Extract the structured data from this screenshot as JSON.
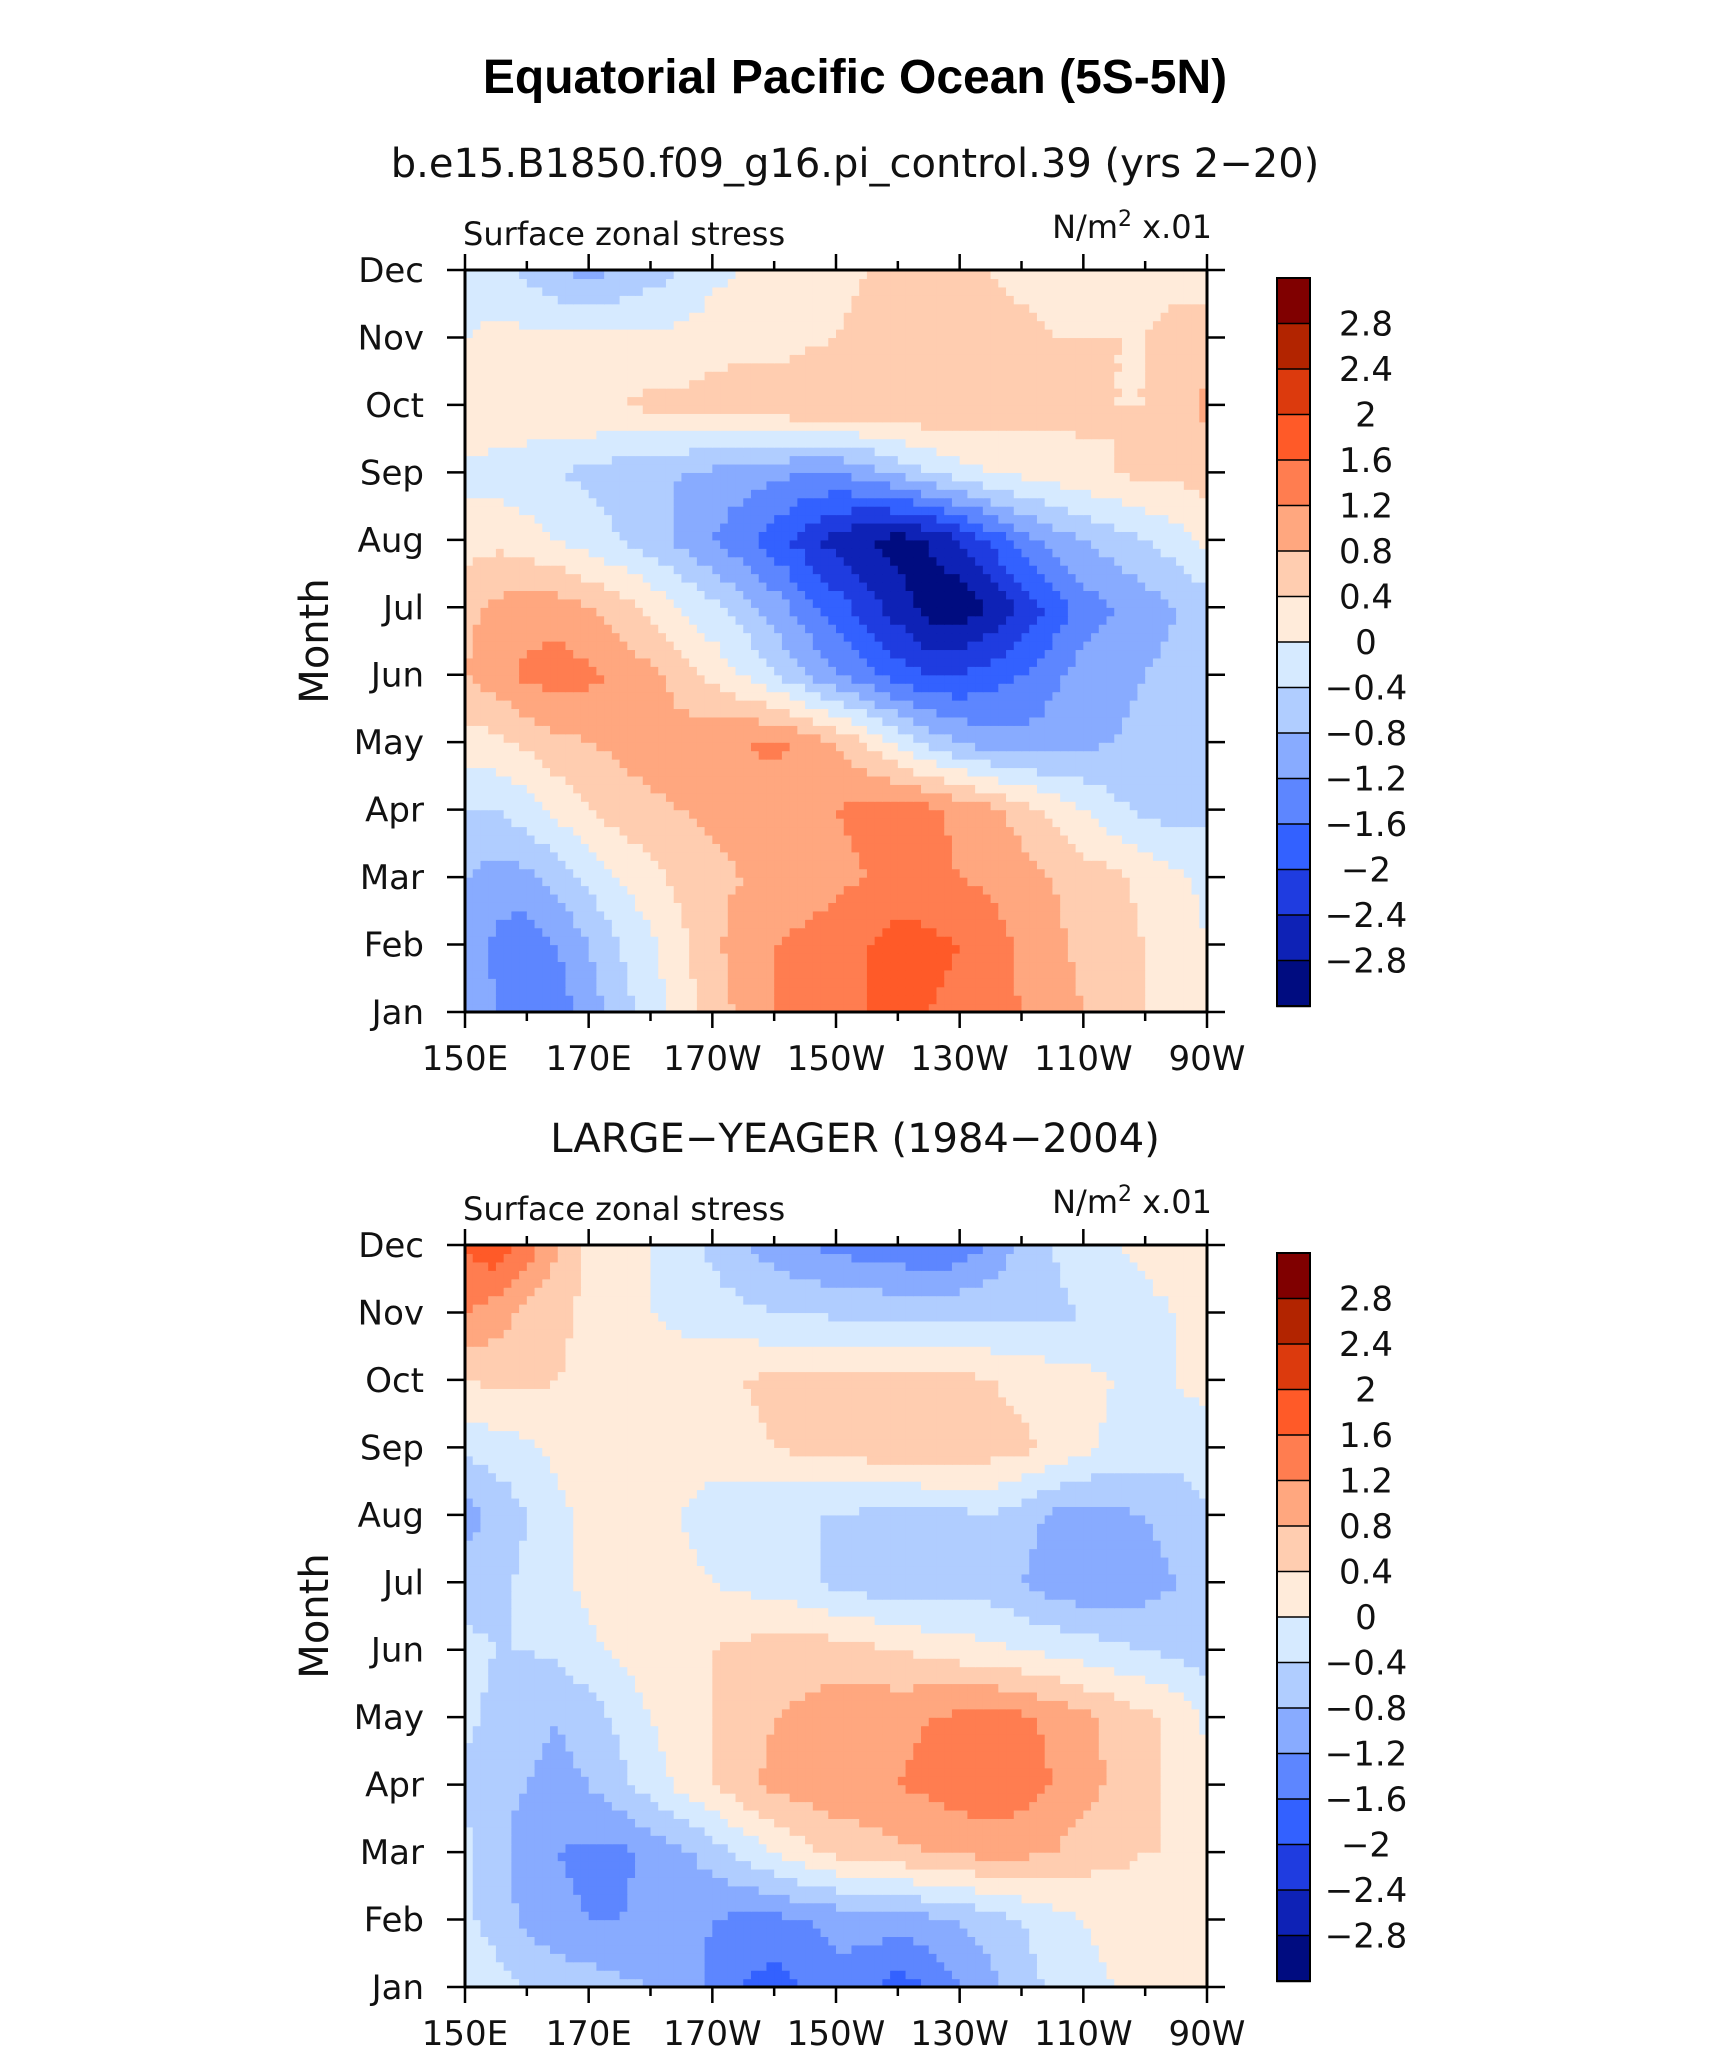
{
  "chart_data": {
    "type": "heatmap",
    "title": "Equatorial Pacific Ocean (5S-5N)",
    "colorbar": {
      "levels": [
        "2.8",
        "2.4",
        "2",
        "1.6",
        "1.2",
        "0.8",
        "0.4",
        "0",
        "−0.4",
        "−0.8",
        "−1.2",
        "−1.6",
        "−2",
        "−2.4",
        "−2.8"
      ],
      "colors": [
        "#800000",
        "#b22400",
        "#dc3a0d",
        "#ff5a28",
        "#ff7d50",
        "#ffa77f",
        "#ffcdb0",
        "#ffebda",
        "#d6eaff",
        "#b0cdff",
        "#88abff",
        "#5d86ff",
        "#3361ff",
        "#1f3ce0",
        "#0e22b6",
        "#000c80"
      ]
    },
    "panels": [
      {
        "subtitle": "b.e15.B1850.f09_g16.pi_control.39 (yrs 2−20)",
        "left_label": "Surface zonal stress",
        "units_prefix": "N/m",
        "units_exp": "2",
        "units_suffix": " x.01",
        "ylabel": "Month",
        "xtick_labels": [
          "150E",
          "170E",
          "170W",
          "150W",
          "130W",
          "110W",
          "90W"
        ],
        "ytick_labels": [
          "Jan",
          "Feb",
          "Mar",
          "Apr",
          "May",
          "Jun",
          "Jul",
          "Aug",
          "Sep",
          "Oct",
          "Nov",
          "Dec"
        ],
        "x_range": [
          "150E",
          "90W"
        ],
        "y_range": [
          "Jan",
          "Dec"
        ],
        "grid": {
          "x": [
            150,
            155,
            160,
            165,
            170,
            175,
            180,
            185,
            190,
            195,
            200,
            205,
            210,
            215,
            220,
            225,
            230,
            235,
            240,
            245,
            250,
            255,
            260,
            265,
            270
          ],
          "y": [
            0,
            1,
            2,
            3,
            4,
            5,
            6,
            7,
            8,
            9,
            10,
            11
          ],
          "z": [
            [
              -0.8,
              -1.2,
              -1.6,
              -1.4,
              -1.0,
              -0.6,
              -0.2,
              0.2,
              0.6,
              0.9,
              1.2,
              1.4,
              1.5,
              1.6,
              1.6,
              1.6,
              1.5,
              1.4,
              1.2,
              1.0,
              0.8,
              0.6,
              0.4,
              0.2,
              0.1
            ],
            [
              -0.9,
              -1.3,
              -1.5,
              -1.2,
              -0.8,
              -0.4,
              -0.1,
              0.3,
              0.7,
              1.0,
              1.2,
              1.3,
              1.4,
              1.6,
              1.8,
              1.7,
              1.6,
              1.4,
              1.1,
              0.9,
              0.7,
              0.5,
              0.4,
              0.2,
              0.0
            ],
            [
              -0.8,
              -1.0,
              -0.9,
              -0.6,
              -0.3,
              0.0,
              0.3,
              0.5,
              0.7,
              0.8,
              0.9,
              1.0,
              1.1,
              1.2,
              1.3,
              1.3,
              1.2,
              1.1,
              1.0,
              0.8,
              0.6,
              0.5,
              0.3,
              0.1,
              -0.1
            ],
            [
              -0.4,
              -0.4,
              -0.2,
              0.1,
              0.4,
              0.6,
              0.7,
              0.8,
              0.9,
              1.0,
              1.0,
              1.1,
              1.2,
              1.3,
              1.4,
              1.3,
              1.1,
              0.9,
              0.6,
              0.3,
              0.0,
              -0.3,
              -0.5,
              -0.6,
              -0.5
            ],
            [
              0.2,
              0.3,
              0.5,
              0.7,
              0.8,
              0.9,
              1.0,
              1.0,
              1.1,
              1.2,
              1.3,
              1.1,
              0.8,
              0.4,
              -0.1,
              -0.5,
              -0.8,
              -1.0,
              -1.1,
              -1.0,
              -0.9,
              -0.8,
              -0.7,
              -0.6,
              -0.5
            ],
            [
              0.8,
              1.0,
              1.3,
              1.4,
              1.3,
              1.1,
              0.9,
              0.6,
              0.3,
              0.0,
              -0.4,
              -0.8,
              -1.2,
              -1.5,
              -1.8,
              -2.0,
              -2.0,
              -1.8,
              -1.6,
              -1.3,
              -1.0,
              -0.9,
              -0.8,
              -0.7,
              -0.6
            ],
            [
              0.7,
              0.9,
              1.0,
              1.0,
              0.8,
              0.6,
              0.3,
              0.0,
              -0.3,
              -0.6,
              -1.0,
              -1.4,
              -1.8,
              -2.2,
              -2.6,
              -3.0,
              -3.1,
              -2.8,
              -2.3,
              -1.9,
              -1.4,
              -1.2,
              -1.0,
              -0.8,
              -0.6
            ],
            [
              0.2,
              0.3,
              0.2,
              0.0,
              -0.2,
              -0.4,
              -0.6,
              -0.9,
              -1.2,
              -1.5,
              -1.8,
              -2.2,
              -2.6,
              -2.8,
              -3.0,
              -2.8,
              -2.4,
              -1.9,
              -1.4,
              -1.0,
              -0.8,
              -0.6,
              -0.4,
              -0.2,
              0.1
            ],
            [
              -0.1,
              -0.2,
              -0.3,
              -0.4,
              -0.5,
              -0.6,
              -0.7,
              -0.8,
              -0.9,
              -1.0,
              -1.1,
              -1.2,
              -1.2,
              -1.0,
              -0.7,
              -0.4,
              -0.2,
              0.0,
              0.1,
              0.2,
              0.3,
              0.4,
              0.5,
              0.5,
              0.6
            ],
            [
              0.3,
              0.4,
              0.4,
              0.4,
              0.4,
              0.4,
              0.5,
              0.5,
              0.6,
              0.7,
              0.7,
              0.8,
              0.8,
              0.8,
              0.8,
              0.8,
              0.8,
              0.7,
              0.6,
              0.5,
              0.5,
              0.4,
              0.4,
              0.6,
              0.9
            ],
            [
              0.0,
              0.1,
              0.1,
              0.1,
              0.1,
              0.1,
              0.1,
              0.1,
              0.2,
              0.2,
              0.2,
              0.3,
              0.4,
              0.5,
              0.6,
              0.6,
              0.6,
              0.5,
              0.5,
              0.4,
              0.4,
              0.4,
              0.4,
              0.5,
              0.6
            ],
            [
              -0.2,
              -0.3,
              -0.5,
              -0.8,
              -0.9,
              -0.8,
              -0.6,
              -0.4,
              -0.1,
              0.0,
              0.1,
              0.2,
              0.3,
              0.4,
              0.4,
              0.4,
              0.4,
              0.4,
              0.3,
              0.3,
              0.3,
              0.3,
              0.3,
              0.3,
              0.2
            ]
          ]
        }
      },
      {
        "subtitle": "LARGE−YEAGER (1984−2004)",
        "left_label": "Surface zonal stress",
        "units_prefix": "N/m",
        "units_exp": "2",
        "units_suffix": " x.01",
        "ylabel": "Month",
        "xtick_labels": [
          "150E",
          "170E",
          "170W",
          "150W",
          "130W",
          "110W",
          "90W"
        ],
        "ytick_labels": [
          "Jan",
          "Feb",
          "Mar",
          "Apr",
          "May",
          "Jun",
          "Jul",
          "Aug",
          "Sep",
          "Oct",
          "Nov",
          "Dec"
        ],
        "x_range": [
          "150E",
          "90W"
        ],
        "y_range": [
          "Jan",
          "Dec"
        ],
        "grid": {
          "x": [
            150,
            155,
            160,
            165,
            170,
            175,
            180,
            185,
            190,
            195,
            200,
            205,
            210,
            215,
            220,
            225,
            230,
            235,
            240,
            245,
            250,
            255,
            260,
            265,
            270
          ],
          "y": [
            0,
            1,
            2,
            3,
            4,
            5,
            6,
            7,
            8,
            9,
            10,
            11
          ],
          "z": [
            [
              0.0,
              -0.2,
              -0.4,
              -0.5,
              -0.6,
              -0.7,
              -0.8,
              -1.0,
              -1.3,
              -1.6,
              -1.8,
              -1.6,
              -1.3,
              -1.5,
              -1.8,
              -1.6,
              -1.2,
              -0.9,
              -0.6,
              -0.3,
              -0.1,
              0.0,
              0.1,
              0.2,
              0.2
            ],
            [
              -0.3,
              -0.6,
              -0.9,
              -1.1,
              -1.2,
              -1.2,
              -1.1,
              -1.0,
              -1.2,
              -1.3,
              -1.3,
              -1.2,
              -1.1,
              -1.0,
              -1.0,
              -0.9,
              -0.8,
              -0.6,
              -0.4,
              -0.2,
              0.0,
              0.1,
              0.2,
              0.3,
              0.2
            ],
            [
              -0.3,
              -0.6,
              -1.0,
              -1.2,
              -1.3,
              -1.3,
              -1.1,
              -0.9,
              -0.6,
              -0.3,
              0.0,
              0.3,
              0.5,
              0.6,
              0.7,
              0.8,
              0.9,
              0.9,
              0.9,
              0.8,
              0.6,
              0.5,
              0.4,
              0.4,
              0.3
            ],
            [
              -0.5,
              -0.7,
              -0.8,
              -0.9,
              -0.8,
              -0.5,
              -0.2,
              0.1,
              0.4,
              0.7,
              0.9,
              1.0,
              1.1,
              1.1,
              1.2,
              1.3,
              1.4,
              1.5,
              1.4,
              1.2,
              1.0,
              0.7,
              0.5,
              0.3,
              0.1
            ],
            [
              -0.3,
              -0.5,
              -0.7,
              -0.8,
              -0.6,
              -0.3,
              0.0,
              0.2,
              0.4,
              0.6,
              0.8,
              0.9,
              1.0,
              1.1,
              1.1,
              1.2,
              1.3,
              1.4,
              1.3,
              1.1,
              0.9,
              0.7,
              0.5,
              0.3,
              -0.1
            ],
            [
              -0.3,
              -0.4,
              -0.4,
              -0.3,
              -0.1,
              0.1,
              0.2,
              0.3,
              0.4,
              0.5,
              0.6,
              0.6,
              0.6,
              0.5,
              0.4,
              0.3,
              0.2,
              0.1,
              0.0,
              -0.1,
              -0.2,
              -0.3,
              -0.4,
              -0.5,
              -0.6
            ],
            [
              -0.6,
              -0.5,
              -0.3,
              -0.1,
              0.1,
              0.2,
              0.2,
              0.1,
              0.0,
              -0.1,
              -0.2,
              -0.3,
              -0.5,
              -0.6,
              -0.7,
              -0.7,
              -0.6,
              -0.6,
              -0.8,
              -1.0,
              -1.1,
              -1.1,
              -1.0,
              -0.8,
              -0.6
            ],
            [
              -1.0,
              -0.7,
              -0.4,
              -0.1,
              0.1,
              0.2,
              0.1,
              0.0,
              -0.2,
              -0.3,
              -0.4,
              -0.4,
              -0.4,
              -0.5,
              -0.6,
              -0.6,
              -0.5,
              -0.4,
              -0.6,
              -0.9,
              -1.0,
              -0.9,
              -0.8,
              -0.6,
              -0.4
            ],
            [
              -0.3,
              -0.2,
              -0.1,
              0.1,
              0.2,
              0.2,
              0.2,
              0.2,
              0.2,
              0.3,
              0.4,
              0.5,
              0.5,
              0.6,
              0.7,
              0.8,
              0.7,
              0.6,
              0.5,
              0.3,
              0.1,
              -0.1,
              -0.2,
              -0.3,
              -0.3
            ],
            [
              0.4,
              0.5,
              0.5,
              0.4,
              0.3,
              0.2,
              0.2,
              0.2,
              0.3,
              0.4,
              0.5,
              0.5,
              0.6,
              0.6,
              0.6,
              0.5,
              0.5,
              0.4,
              0.3,
              0.2,
              0.1,
              0.0,
              -0.1,
              0.0,
              0.2
            ],
            [
              1.2,
              1.0,
              0.7,
              0.5,
              0.3,
              0.1,
              0.0,
              -0.1,
              -0.2,
              -0.3,
              -0.4,
              -0.4,
              -0.5,
              -0.5,
              -0.5,
              -0.5,
              -0.5,
              -0.5,
              -0.5,
              -0.5,
              -0.4,
              -0.2,
              -0.1,
              0.0,
              0.1
            ],
            [
              1.6,
              1.9,
              1.4,
              0.8,
              0.3,
              0.1,
              0.0,
              -0.2,
              -0.5,
              -0.8,
              -1.0,
              -1.2,
              -1.3,
              -1.4,
              -1.5,
              -1.6,
              -1.5,
              -1.1,
              -0.7,
              -0.4,
              -0.1,
              0.0,
              0.1,
              0.2,
              0.2
            ]
          ]
        }
      }
    ]
  }
}
